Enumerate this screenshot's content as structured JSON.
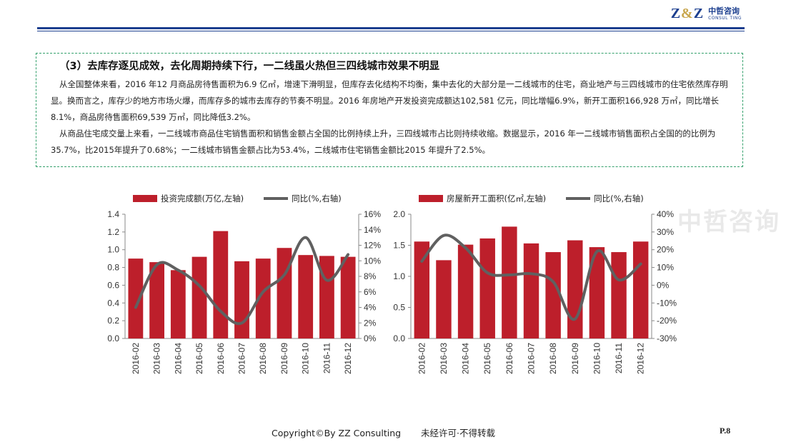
{
  "brand": {
    "logo_mark": "Z&Z",
    "logo_name_cn": "中哲咨询",
    "logo_name_en": "CONSUL TING",
    "colors": {
      "navy": "#1c3f8f",
      "gold": "#c8a64c",
      "bar_red": "#bd1f2b",
      "line_gray": "#606060",
      "frame_green": "#33a06b"
    }
  },
  "section": {
    "heading": "（3）去库存逐见成效，去化周期持续下行，一二线虽火热但三四线城市效果不明显",
    "paragraph_1": "从全国整体来看，2016 年12 月商品房待售面积为6.9 亿㎡，增速下滑明显，但库存去化结构不均衡，集中去化的大部分是一二线城市的住宅，商业地产与三四线城市的住宅依然库存明显。换而言之，库存少的地方市场火爆，而库存多的城市去库存的节奏不明显。2016 年房地产开发投资完成额达102,581 亿元，同比增幅6.9%，新开工面积166,928 万㎡，同比增长8.1%，商品房待售面积69,539 万㎡，同比降低3.2%。",
    "paragraph_2": "从商品住宅成交量上来看，一二线城市商品住宅销售面积和销售金额占全国的比例持续上升，三四线城市占比则持续收缩。数据显示，2016 年一二线城市销售面积占全国的的比例为35.7%，比2015年提升了0.68%；一二线城市销售金额占比为53.4%，二线城市住宅销售金额比2015 年提升了2.5%。"
  },
  "watermark": "中哲咨询",
  "footer": {
    "copyright": "Copyright©By  ZZ Consulting",
    "notice": "未经许可·不得转载",
    "page": "P.8"
  },
  "chart_data": [
    {
      "type": "bar",
      "categories": [
        "2016-02",
        "2016-03",
        "2016-04",
        "2016-05",
        "2016-06",
        "2016-07",
        "2016-08",
        "2016-09",
        "2016-10",
        "2016-11",
        "2016-12"
      ],
      "series": [
        {
          "name": "投资完成额(万亿,左轴)",
          "type": "bar",
          "axis": "left",
          "values": [
            0.9,
            0.86,
            0.77,
            0.92,
            1.21,
            0.87,
            0.9,
            1.02,
            0.94,
            0.93,
            0.92
          ]
        },
        {
          "name": "同比(%,右轴)",
          "type": "line",
          "axis": "right",
          "values": [
            4.0,
            9.5,
            8.8,
            6.8,
            3.5,
            2.0,
            6.0,
            8.2,
            13.0,
            7.5,
            10.8
          ]
        }
      ],
      "left_axis": {
        "range": [
          0,
          1.4
        ],
        "ticks": [
          "0.0",
          "0.2",
          "0.4",
          "0.6",
          "0.8",
          "1.0",
          "1.2",
          "1.4"
        ]
      },
      "right_axis": {
        "range": [
          0,
          16
        ],
        "ticks": [
          "0%",
          "2%",
          "4%",
          "6%",
          "8%",
          "10%",
          "12%",
          "14%",
          "16%"
        ]
      },
      "legend_position": "top",
      "grid": false
    },
    {
      "type": "bar",
      "categories": [
        "2016-02",
        "2016-03",
        "2016-04",
        "2016-05",
        "2016-06",
        "2016-07",
        "2016-08",
        "2016-09",
        "2016-10",
        "2016-11",
        "2016-12"
      ],
      "series": [
        {
          "name": "房屋新开工面积(亿㎡,左轴)",
          "type": "bar",
          "axis": "left",
          "values": [
            1.56,
            1.26,
            1.51,
            1.61,
            1.8,
            1.53,
            1.39,
            1.58,
            1.47,
            1.39,
            1.56
          ]
        },
        {
          "name": "同比(%,右轴)",
          "type": "line",
          "axis": "right",
          "values": [
            13.5,
            28.0,
            21.0,
            7.0,
            5.8,
            6.5,
            2.0,
            -19.0,
            19.0,
            3.0,
            12.0
          ]
        }
      ],
      "left_axis": {
        "range": [
          0,
          2.0
        ],
        "ticks": [
          "0.0",
          "0.5",
          "1.0",
          "1.5",
          "2.0"
        ]
      },
      "right_axis": {
        "range": [
          -30,
          40
        ],
        "ticks": [
          "-30%",
          "-20%",
          "-10%",
          "0%",
          "10%",
          "20%",
          "30%",
          "40%"
        ]
      },
      "legend_position": "top",
      "grid": false
    }
  ]
}
